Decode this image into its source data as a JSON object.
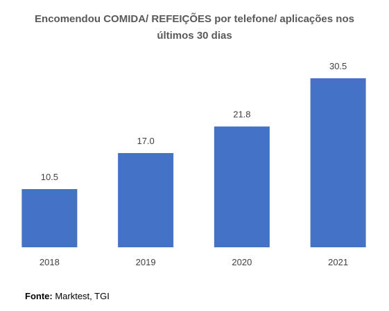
{
  "chart_data": {
    "type": "bar",
    "title_lines": [
      "Encomendou COMIDA/ REFEIÇÕES por telefone/ aplicações nos",
      "últimos 30 dias"
    ],
    "categories": [
      "2018",
      "2019",
      "2020",
      "2021"
    ],
    "values": [
      10.5,
      17.0,
      21.8,
      30.5
    ],
    "value_labels": [
      "10.5",
      "17.0",
      "21.8",
      "30.5"
    ],
    "ylim": [
      0,
      31
    ],
    "grid": false,
    "legend": "none",
    "bar_color": "#4472C4"
  },
  "source": {
    "label": "Fonte:",
    "text": " Marktest, TGI"
  }
}
